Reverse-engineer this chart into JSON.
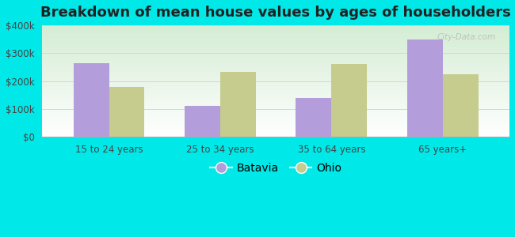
{
  "title": "Breakdown of mean house values by ages of householders",
  "categories": [
    "15 to 24 years",
    "25 to 34 years",
    "35 to 64 years",
    "65 years+"
  ],
  "batavia_values": [
    265000,
    110000,
    140000,
    350000
  ],
  "ohio_values": [
    180000,
    232000,
    262000,
    225000
  ],
  "batavia_color": "#b39ddb",
  "ohio_color": "#c5cc8e",
  "background_color": "#00e8e8",
  "grad_top": "#d4edd4",
  "grad_bottom": "#ffffff",
  "ylim": [
    0,
    400000
  ],
  "yticks": [
    0,
    100000,
    200000,
    300000,
    400000
  ],
  "ytick_labels": [
    "$0",
    "$100k",
    "$200k",
    "$300k",
    "$400k"
  ],
  "bar_width": 0.32,
  "title_fontsize": 13,
  "legend_labels": [
    "Batavia",
    "Ohio"
  ],
  "watermark": "City-Data.com"
}
